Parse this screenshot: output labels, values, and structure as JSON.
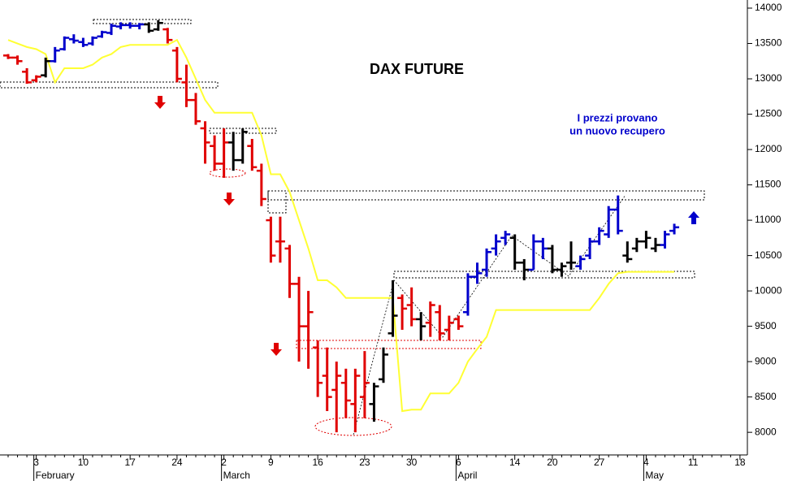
{
  "chart_data": {
    "type": "ohlc",
    "title": "DAX FUTURE",
    "annotation": [
      "I prezzi provano",
      "un nuovo recupero"
    ],
    "categories": [
      null,
      null,
      null,
      "3",
      null,
      null,
      null,
      null,
      "10",
      null,
      null,
      null,
      null,
      "17",
      null,
      null,
      null,
      null,
      "24",
      null,
      null,
      null,
      null,
      "2",
      null,
      null,
      null,
      null,
      "9",
      null,
      null,
      null,
      null,
      "16",
      null,
      null,
      null,
      null,
      "23",
      null,
      null,
      null,
      null,
      "30",
      null,
      null,
      null,
      null,
      "6",
      null,
      null,
      null,
      null,
      null,
      "14",
      null,
      null,
      null,
      "20",
      null,
      null,
      null,
      null,
      "27",
      null,
      null,
      null,
      null,
      "4",
      null,
      null,
      null,
      null,
      "11",
      null,
      null,
      null,
      null,
      "18"
    ],
    "months": [
      null,
      null,
      null,
      "February",
      null,
      null,
      null,
      null,
      null,
      null,
      null,
      null,
      null,
      null,
      null,
      null,
      null,
      null,
      null,
      null,
      null,
      null,
      null,
      "March",
      null,
      null,
      null,
      null,
      null,
      null,
      null,
      null,
      null,
      null,
      null,
      null,
      null,
      null,
      null,
      null,
      null,
      null,
      null,
      null,
      null,
      null,
      null,
      null,
      "April",
      null,
      null,
      null,
      null,
      null,
      null,
      null,
      null,
      null,
      null,
      null,
      null,
      null,
      null,
      null,
      null,
      null,
      null,
      null,
      "May",
      null,
      null,
      null,
      null,
      null,
      null,
      null,
      null,
      null,
      null
    ],
    "open": [
      13330,
      13300,
      13100,
      12980,
      13050,
      13250,
      13420,
      13560,
      13520,
      13500,
      13600,
      13650,
      13740,
      13760,
      13750,
      13770,
      13700,
      13700,
      13400,
      12950,
      12700,
      12300,
      12050,
      11800,
      12100,
      11850,
      12050,
      11700,
      11000,
      10700,
      10600,
      10100,
      9500,
      9200,
      8800,
      8600,
      8700,
      8400,
      8500,
      8400,
      8750,
      9400,
      9900,
      9800,
      9600,
      9550,
      9700,
      9450,
      9600,
      9700,
      10200,
      10300,
      10600,
      10750,
      10750,
      10400,
      10300,
      10700,
      10600,
      10300,
      10400,
      10350,
      10500,
      10700,
      10800,
      11150,
      10500,
      10600,
      10700,
      10600,
      10650,
      10850,
      null,
      null,
      null,
      null,
      null,
      null,
      null
    ],
    "high": [
      13350,
      13330,
      13150,
      13050,
      13300,
      13450,
      13600,
      13630,
      13580,
      13600,
      13680,
      13780,
      13800,
      13800,
      13790,
      13800,
      13830,
      13720,
      13450,
      13200,
      12800,
      12400,
      12200,
      12300,
      12250,
      12300,
      12150,
      11800,
      11050,
      11050,
      10650,
      10200,
      10000,
      9300,
      9200,
      9000,
      8900,
      8900,
      9150,
      8700,
      9200,
      10150,
      9950,
      10050,
      9700,
      9850,
      9800,
      9650,
      9650,
      10250,
      10400,
      10600,
      10800,
      10850,
      10800,
      10450,
      10800,
      10750,
      10650,
      10400,
      10700,
      10500,
      10750,
      10900,
      11200,
      11350,
      10700,
      10750,
      10850,
      10750,
      10850,
      10950,
      null,
      null,
      null,
      null,
      null,
      null,
      null
    ],
    "low": [
      13280,
      13200,
      12930,
      12950,
      13020,
      13230,
      13400,
      13500,
      13450,
      13470,
      13580,
      13620,
      13700,
      13710,
      13700,
      13650,
      13680,
      13500,
      12950,
      12600,
      12350,
      11800,
      11700,
      11600,
      11700,
      11800,
      11700,
      11200,
      10400,
      10400,
      9900,
      9000,
      8900,
      8500,
      8300,
      8000,
      8200,
      8000,
      8200,
      8150,
      8700,
      9350,
      9450,
      9500,
      9300,
      9350,
      9300,
      9300,
      9450,
      9650,
      10100,
      10200,
      10500,
      10650,
      10300,
      10150,
      10300,
      10450,
      10250,
      10200,
      10300,
      10300,
      10450,
      10650,
      10750,
      10800,
      10400,
      10550,
      10600,
      10550,
      10600,
      10800,
      null,
      null,
      null,
      null,
      null,
      null,
      null
    ],
    "close": [
      13300,
      13250,
      12950,
      13030,
      13250,
      13400,
      13580,
      13540,
      13480,
      13580,
      13660,
      13750,
      13760,
      13750,
      13770,
      13680,
      13790,
      13550,
      13000,
      12700,
      12400,
      12100,
      11800,
      12100,
      11850,
      12250,
      11750,
      11300,
      10500,
      10700,
      10100,
      9500,
      9700,
      8700,
      8500,
      8800,
      8450,
      8800,
      8700,
      8650,
      9100,
      9650,
      9750,
      9600,
      9500,
      9800,
      9400,
      9550,
      9500,
      10200,
      10250,
      10550,
      10700,
      10800,
      10400,
      10300,
      10700,
      10600,
      10300,
      10350,
      10400,
      10450,
      10700,
      10850,
      11150,
      10850,
      10450,
      10700,
      10750,
      10650,
      10800,
      10900,
      null,
      null,
      null,
      null,
      null,
      null,
      null
    ],
    "colors": [
      "#e00000",
      "#e00000",
      "#e00000",
      "#e00000",
      "#000000",
      "#0000cc",
      "#0000cc",
      "#0000cc",
      "#0000cc",
      "#0000cc",
      "#0000cc",
      "#0000cc",
      "#0000cc",
      "#0000cc",
      "#0000cc",
      "#000000",
      "#000000",
      "#e00000",
      "#e00000",
      "#e00000",
      "#e00000",
      "#e00000",
      "#e00000",
      "#e00000",
      "#000000",
      "#000000",
      "#e00000",
      "#e00000",
      "#e00000",
      "#e00000",
      "#e00000",
      "#e00000",
      "#e00000",
      "#e00000",
      "#e00000",
      "#e00000",
      "#e00000",
      "#e00000",
      "#e00000",
      "#000000",
      "#000000",
      "#000000",
      "#e00000",
      "#e00000",
      "#000000",
      "#e00000",
      "#e00000",
      "#e00000",
      "#e00000",
      "#0000cc",
      "#0000cc",
      "#0000cc",
      "#0000cc",
      "#0000cc",
      "#000000",
      "#000000",
      "#0000cc",
      "#0000cc",
      "#000000",
      "#000000",
      "#000000",
      "#0000cc",
      "#0000cc",
      "#0000cc",
      "#0000cc",
      "#0000cc",
      "#000000",
      "#000000",
      "#000000",
      "#000000",
      "#0000cc",
      "#0000cc",
      null,
      null,
      null,
      null,
      null,
      null,
      null
    ],
    "stop_line": {
      "color": "#ffff33",
      "values": [
        13550,
        13500,
        13450,
        13420,
        13350,
        12950,
        13150,
        13150,
        13150,
        13200,
        13300,
        13350,
        13450,
        13480,
        13480,
        13480,
        13480,
        13480,
        13550,
        13300,
        13000,
        12700,
        12520,
        12520,
        12520,
        12520,
        12520,
        12200,
        11650,
        11650,
        11400,
        11000,
        10600,
        10150,
        10150,
        10050,
        9900,
        9900,
        9900,
        9900,
        9900,
        9900,
        8300,
        8320,
        8320,
        8550,
        8550,
        8550,
        8700,
        9000,
        9180,
        9350,
        9730,
        9730,
        9730,
        9730,
        9730,
        9730,
        9730,
        9730,
        9730,
        9730,
        9730,
        9900,
        10100,
        10250,
        10270,
        10270,
        10270,
        10270,
        10270,
        10270,
        null,
        null,
        null,
        null,
        null,
        null,
        null
      ]
    },
    "ylim": [
      7680,
      14110
    ],
    "yticks": [
      8000,
      8500,
      9000,
      9500,
      10000,
      10500,
      11000,
      11500,
      12000,
      12500,
      13000,
      13500,
      14000
    ]
  }
}
